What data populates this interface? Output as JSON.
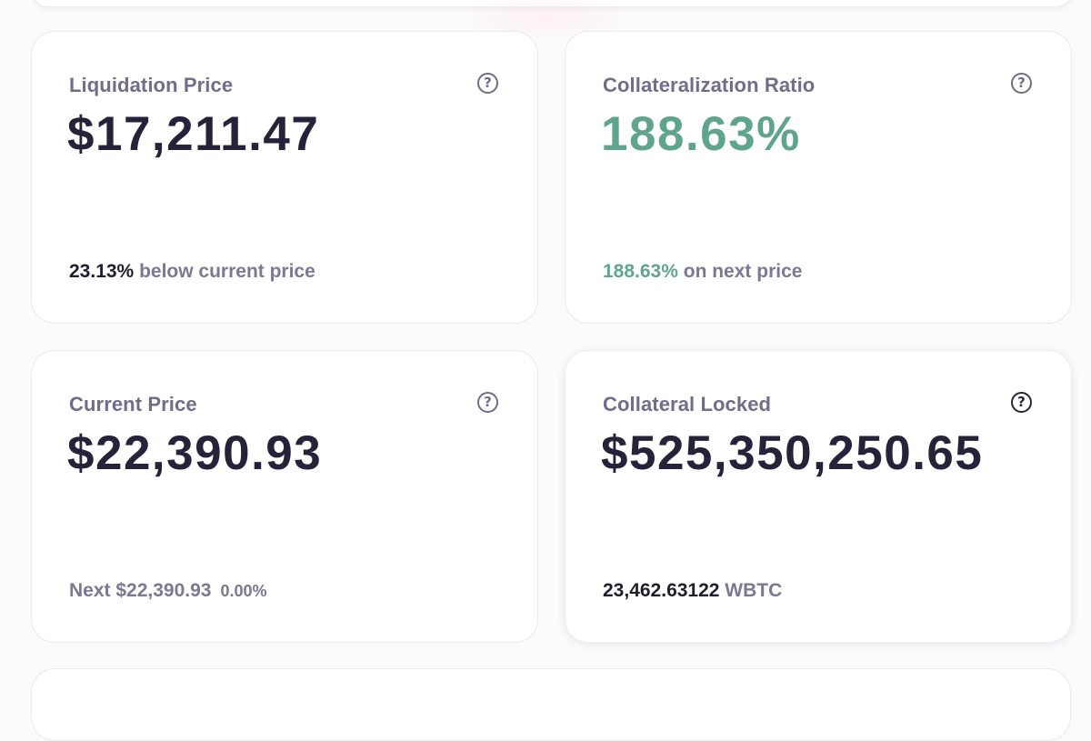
{
  "cards": {
    "liquidation": {
      "label": "Liquidation Price",
      "value": "$17,211.47",
      "footer_strong": "23.13%",
      "footer_text": " below current price"
    },
    "collateral_ratio": {
      "label": "Collateralization Ratio",
      "value": "188.63%",
      "footer_strong": "188.63%",
      "footer_text": " on next price"
    },
    "current_price": {
      "label": "Current Price",
      "value": "$22,390.93",
      "footer_text": "Next $22,390.93",
      "footer_change": "0.00%"
    },
    "collateral_locked": {
      "label": "Collateral Locked",
      "value": "$525,350,250.65",
      "footer_strong": "23,462.63122",
      "footer_text": " WBTC"
    }
  },
  "help_glyph": "?",
  "icons": {
    "help": "question-circle-icon"
  },
  "colors": {
    "accent_green": "#5fa58d",
    "text_dark": "#25233a",
    "text_muted": "#6f6d89"
  }
}
